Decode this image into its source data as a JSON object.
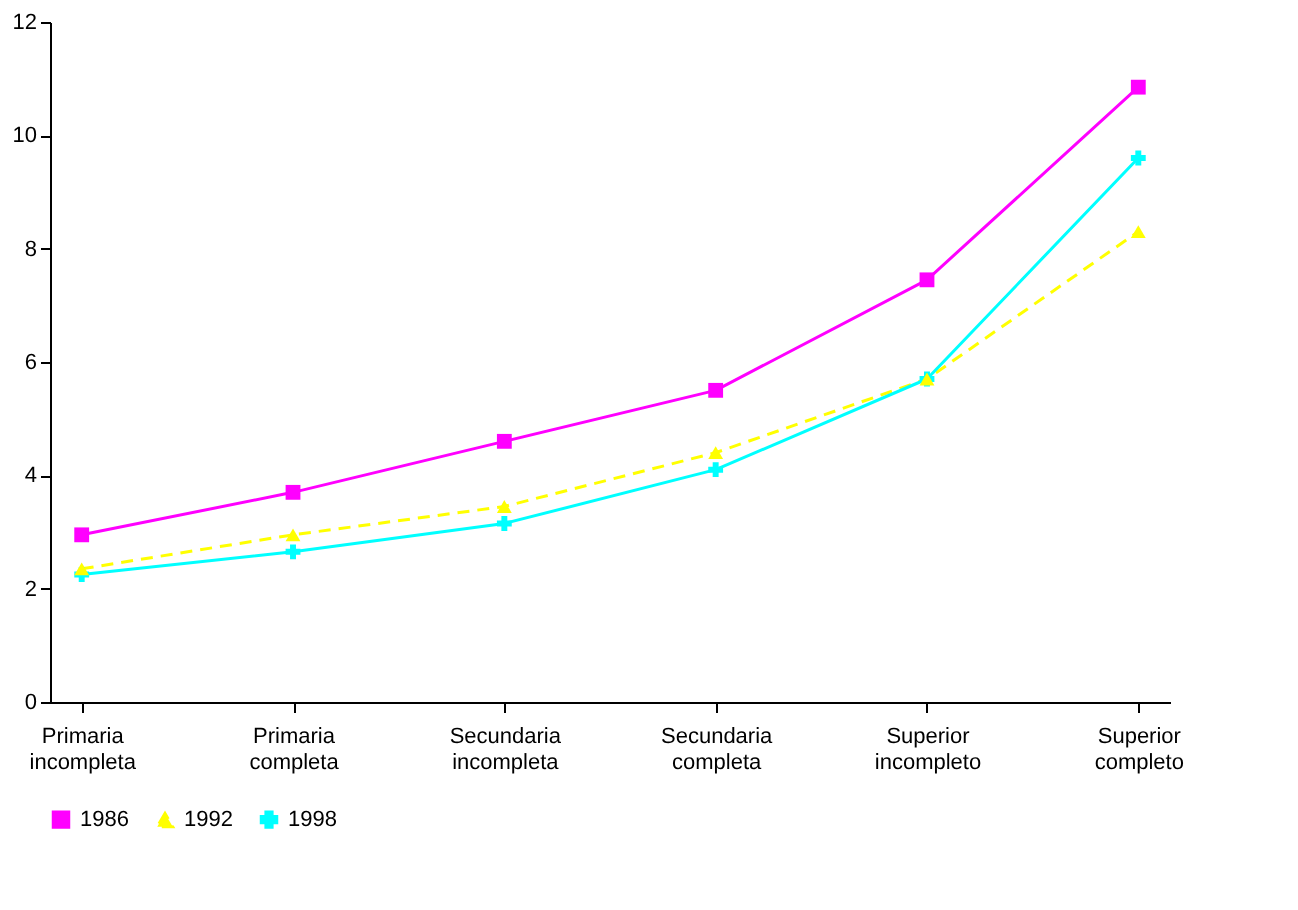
{
  "chart_data": {
    "type": "line",
    "categories": [
      "Primaria incompleta",
      "Primaria completa",
      "Secundaria incompleta",
      "Secundaria completa",
      "Superior incompleto",
      "Superior completo"
    ],
    "series": [
      {
        "name": "1986",
        "color": "#ff00ff",
        "marker": "square",
        "line_style": "solid",
        "values": [
          2.95,
          3.7,
          4.6,
          5.5,
          7.45,
          10.85
        ]
      },
      {
        "name": "1992",
        "color": "#ffff00",
        "marker": "triangle",
        "line_style": "dashed",
        "values": [
          2.35,
          2.95,
          3.45,
          4.4,
          5.7,
          8.3
        ]
      },
      {
        "name": "1998",
        "color": "#00ffff",
        "marker": "cross",
        "line_style": "solid",
        "values": [
          2.25,
          2.65,
          3.15,
          4.1,
          5.7,
          9.6
        ]
      }
    ],
    "ylim": [
      0,
      12
    ],
    "yticks": [
      0,
      2,
      4,
      6,
      8,
      10,
      12
    ],
    "grid": false,
    "legend": "bottom"
  }
}
